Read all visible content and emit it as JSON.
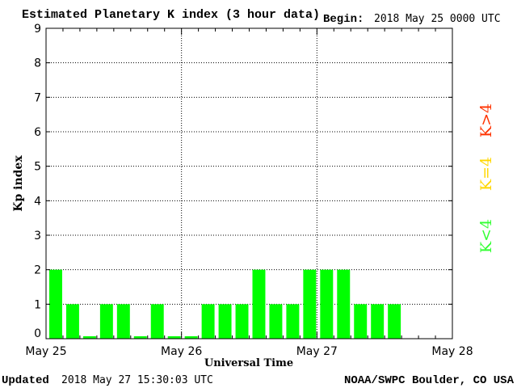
{
  "chart_data": {
    "type": "bar",
    "title": "Estimated Planetary K index (3 hour data)",
    "begin_label": "Begin:",
    "begin_value": "2018 May 25 0000 UTC",
    "xlabel": "Universal Time",
    "ylabel": "Kp index",
    "ylim": [
      0,
      9
    ],
    "yticks": [
      "0",
      "1",
      "2",
      "3",
      "4",
      "5",
      "6",
      "7",
      "8",
      "9"
    ],
    "xticks": [
      "May 25",
      "May 26",
      "May 27",
      "May 28"
    ],
    "slots_total": 24,
    "values": [
      2,
      1,
      0,
      1,
      1,
      0,
      1,
      0,
      0,
      1,
      1,
      1,
      2,
      1,
      1,
      2,
      2,
      2,
      1,
      1,
      1
    ],
    "grid": true,
    "bar_color": "#00ff00",
    "legend": [
      {
        "label": "K<4",
        "color": "#33ff33"
      },
      {
        "label": "K=4",
        "color": "#ffd700"
      },
      {
        "label": "K>4",
        "color": "#ff3300"
      }
    ]
  },
  "footer": {
    "updated_label": "Updated",
    "updated_value": "2018 May 27 15:30:03 UTC",
    "source": "NOAA/SWPC Boulder, CO USA"
  }
}
